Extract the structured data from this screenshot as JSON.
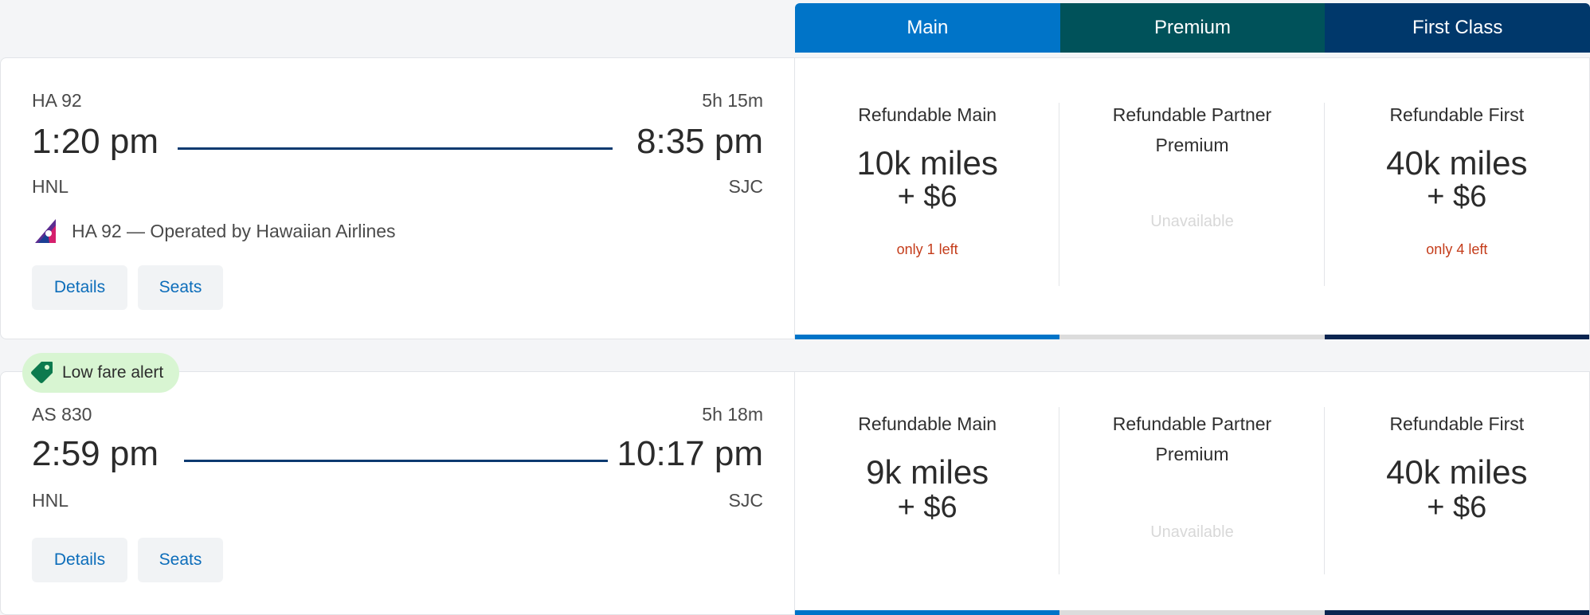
{
  "colors": {
    "main": "#0074c8",
    "premium": "#00525a",
    "first": "#00386b",
    "unavailable_bar": "#dcdcdc",
    "first_bar": "#0b2550",
    "route_line": "#0b3a70",
    "scarcity": "#c43c1a",
    "link": "#0c6dba"
  },
  "cabins": [
    {
      "label": "Main"
    },
    {
      "label": "Premium"
    },
    {
      "label": "First Class"
    }
  ],
  "flights": [
    {
      "flight_number": "HA 92",
      "duration": "5h 15m",
      "depart_time": "1:20 pm",
      "arrive_time": "8:35 pm",
      "origin": "HNL",
      "destination": "SJC",
      "operated_by": "HA 92 — Operated by Hawaiian Airlines",
      "airline_logo_icon": "hawaiian-airlines-logo-icon",
      "details_label": "Details",
      "seats_label": "Seats",
      "fares": [
        {
          "title": "Refundable Main",
          "price": "10k miles",
          "fee": "+ $6",
          "availability": "only 1 left"
        },
        {
          "title": "Refundable Partner Premium",
          "unavailable": "Unavailable"
        },
        {
          "title": "Refundable First",
          "price": "40k miles",
          "fee": "+ $6",
          "availability": "only 4 left"
        }
      ]
    },
    {
      "badge": "Low fare alert",
      "badge_icon": "price-tag-icon",
      "flight_number": "AS 830",
      "duration": "5h 18m",
      "depart_time": "2:59 pm",
      "arrive_time": "10:17 pm",
      "origin": "HNL",
      "destination": "SJC",
      "details_label": "Details",
      "seats_label": "Seats",
      "fares": [
        {
          "title": "Refundable Main",
          "price": "9k miles",
          "fee": "+ $6"
        },
        {
          "title": "Refundable Partner Premium",
          "unavailable": "Unavailable"
        },
        {
          "title": "Refundable First",
          "price": "40k miles",
          "fee": "+ $6"
        }
      ]
    }
  ]
}
